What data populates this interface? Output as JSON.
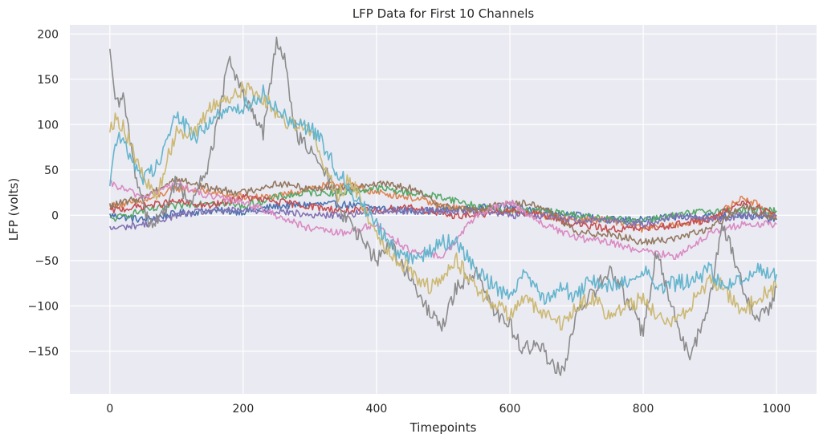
{
  "chart_data": {
    "type": "line",
    "title": "LFP Data for First 10 Channels",
    "xlabel": "Timepoints",
    "ylabel": "LFP (volts)",
    "xlim": [
      -60,
      1060
    ],
    "ylim": [
      -197,
      210
    ],
    "xticks": [
      0,
      200,
      400,
      600,
      800,
      1000
    ],
    "xtick_labels": [
      "0",
      "200",
      "400",
      "600",
      "800",
      "1000"
    ],
    "yticks": [
      -150,
      -100,
      -50,
      0,
      50,
      100,
      150,
      200
    ],
    "ytick_labels": [
      "−150",
      "−100",
      "−50",
      "0",
      "50",
      "100",
      "150",
      "200"
    ],
    "grid": true,
    "background": "#eaeaf2",
    "series": [
      {
        "color": "#4c72b0",
        "x": [
          0,
          50,
          100,
          150,
          200,
          250,
          300,
          350,
          400,
          450,
          500,
          550,
          600,
          650,
          700,
          750,
          800,
          850,
          900,
          950,
          1000
        ],
        "values": [
          0,
          -5,
          2,
          5,
          4,
          10,
          12,
          12,
          8,
          5,
          5,
          8,
          10,
          5,
          0,
          -5,
          -5,
          -2,
          0,
          0,
          -5
        ]
      },
      {
        "color": "#dd8452",
        "x": [
          0,
          50,
          100,
          150,
          200,
          250,
          300,
          350,
          400,
          450,
          500,
          550,
          600,
          650,
          700,
          750,
          800,
          850,
          900,
          950,
          1000
        ],
        "values": [
          10,
          15,
          30,
          25,
          20,
          20,
          30,
          35,
          25,
          20,
          10,
          5,
          5,
          0,
          -5,
          -5,
          -15,
          -10,
          -5,
          20,
          0
        ]
      },
      {
        "color": "#55a868",
        "x": [
          0,
          50,
          100,
          150,
          200,
          250,
          300,
          350,
          400,
          450,
          500,
          550,
          600,
          650,
          700,
          750,
          800,
          850,
          900,
          950,
          1000
        ],
        "values": [
          -5,
          5,
          10,
          15,
          10,
          20,
          25,
          25,
          30,
          25,
          20,
          10,
          5,
          5,
          0,
          -5,
          -5,
          0,
          5,
          5,
          5
        ]
      },
      {
        "color": "#c44e52",
        "x": [
          0,
          50,
          100,
          150,
          200,
          250,
          300,
          350,
          400,
          450,
          500,
          550,
          600,
          650,
          700,
          750,
          800,
          850,
          900,
          950,
          1000
        ],
        "values": [
          5,
          10,
          15,
          10,
          20,
          15,
          10,
          5,
          5,
          10,
          0,
          0,
          5,
          0,
          -10,
          -15,
          -15,
          -10,
          -5,
          15,
          0
        ]
      },
      {
        "color": "#8172b3",
        "x": [
          0,
          50,
          100,
          150,
          200,
          250,
          300,
          350,
          400,
          450,
          500,
          550,
          600,
          650,
          700,
          750,
          800,
          850,
          900,
          950,
          1000
        ],
        "values": [
          -15,
          -10,
          0,
          5,
          5,
          5,
          0,
          0,
          5,
          5,
          5,
          5,
          0,
          0,
          -5,
          -5,
          -10,
          0,
          -5,
          0,
          0
        ]
      },
      {
        "color": "#937860",
        "x": [
          0,
          50,
          100,
          150,
          200,
          250,
          300,
          350,
          400,
          450,
          500,
          550,
          600,
          650,
          700,
          750,
          800,
          850,
          900,
          950,
          1000
        ],
        "values": [
          10,
          20,
          40,
          30,
          25,
          35,
          30,
          30,
          35,
          30,
          10,
          5,
          15,
          10,
          -20,
          -20,
          -30,
          -25,
          -15,
          10,
          -5
        ]
      },
      {
        "color": "#da8bc3",
        "x": [
          0,
          50,
          100,
          150,
          200,
          250,
          300,
          350,
          400,
          450,
          500,
          550,
          600,
          650,
          700,
          750,
          800,
          850,
          900,
          950,
          1000
        ],
        "values": [
          35,
          20,
          35,
          20,
          15,
          0,
          -15,
          -20,
          -10,
          -40,
          -45,
          0,
          15,
          -10,
          -25,
          -30,
          -40,
          -45,
          -20,
          -10,
          -10
        ]
      },
      {
        "color": "#8c8c8c",
        "x": [
          0,
          10,
          20,
          40,
          60,
          80,
          100,
          120,
          150,
          180,
          200,
          230,
          250,
          260,
          280,
          300,
          330,
          350,
          380,
          400,
          420,
          450,
          480,
          500,
          520,
          550,
          580,
          600,
          620,
          640,
          660,
          680,
          700,
          720,
          750,
          780,
          800,
          820,
          850,
          870,
          900,
          920,
          950,
          970,
          990,
          1000
        ],
        "values": [
          175,
          120,
          130,
          40,
          -10,
          0,
          40,
          10,
          60,
          175,
          130,
          90,
          190,
          180,
          90,
          70,
          40,
          0,
          -30,
          -50,
          -30,
          -70,
          -110,
          -120,
          -80,
          -60,
          -110,
          -120,
          -150,
          -140,
          -160,
          -175,
          -110,
          -90,
          -60,
          -100,
          -130,
          -40,
          -120,
          -160,
          -90,
          -10,
          -80,
          -115,
          -100,
          -80
        ]
      },
      {
        "color": "#ccb974",
        "x": [
          0,
          10,
          20,
          50,
          70,
          100,
          130,
          150,
          180,
          200,
          230,
          260,
          290,
          310,
          340,
          360,
          380,
          400,
          420,
          450,
          480,
          500,
          520,
          550,
          580,
          600,
          620,
          650,
          680,
          700,
          720,
          750,
          780,
          800,
          820,
          850,
          880,
          900,
          920,
          950,
          970,
          1000
        ],
        "values": [
          100,
          105,
          100,
          40,
          20,
          95,
          90,
          120,
          130,
          140,
          130,
          105,
          100,
          80,
          20,
          40,
          10,
          -20,
          -40,
          -60,
          -80,
          -70,
          -50,
          -80,
          -100,
          -110,
          -90,
          -110,
          -120,
          -100,
          -90,
          -110,
          -100,
          -90,
          -110,
          -120,
          -90,
          -70,
          -80,
          -110,
          -90,
          -80
        ]
      },
      {
        "color": "#64b5cd",
        "x": [
          0,
          10,
          20,
          50,
          70,
          100,
          130,
          150,
          180,
          200,
          230,
          260,
          290,
          310,
          340,
          360,
          380,
          400,
          420,
          450,
          480,
          500,
          520,
          550,
          580,
          600,
          620,
          650,
          680,
          700,
          720,
          750,
          780,
          800,
          820,
          850,
          880,
          900,
          920,
          950,
          970,
          1000
        ],
        "values": [
          40,
          85,
          80,
          40,
          55,
          110,
          85,
          105,
          115,
          120,
          135,
          110,
          100,
          90,
          50,
          30,
          10,
          -10,
          -30,
          -50,
          -40,
          -30,
          -30,
          -60,
          -80,
          -90,
          -60,
          -90,
          -80,
          -90,
          -70,
          -80,
          -70,
          -60,
          -80,
          -75,
          -70,
          -60,
          -80,
          -70,
          -60,
          -65
        ]
      }
    ]
  }
}
